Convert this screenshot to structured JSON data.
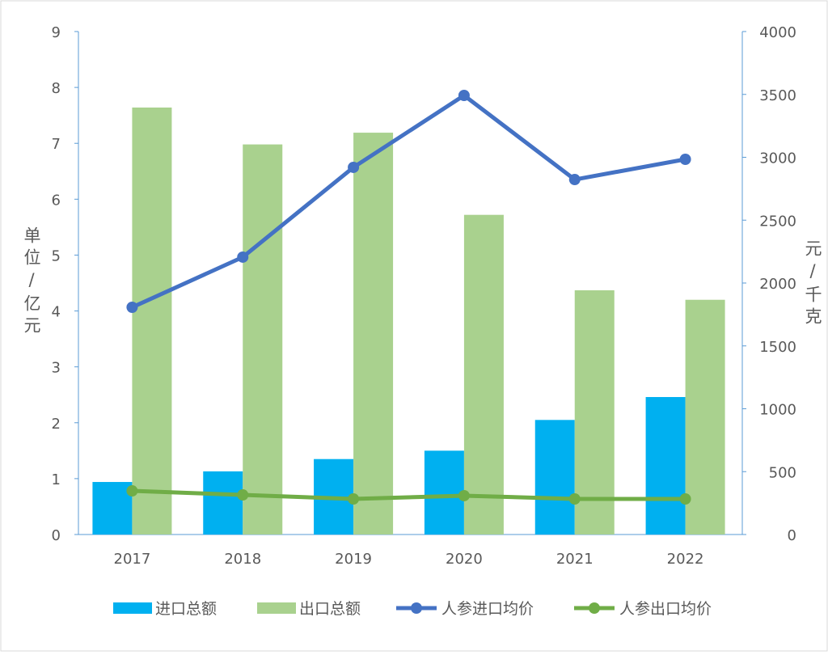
{
  "chart_data": {
    "type": "bar",
    "title": "",
    "categories": [
      "2017",
      "2018",
      "2019",
      "2020",
      "2021",
      "2022"
    ],
    "ylabel_left": "单位/亿元",
    "ylabel_right": "元/千克",
    "ylim_left": [
      0,
      9
    ],
    "yticks_left": [
      0,
      1,
      2,
      3,
      4,
      5,
      6,
      7,
      8,
      9
    ],
    "ylim_right": [
      0,
      4000
    ],
    "yticks_right": [
      0,
      500,
      1000,
      1500,
      2000,
      2500,
      3000,
      3500,
      4000
    ],
    "legend_position": "bottom",
    "series": [
      {
        "name": "进口总额",
        "type": "bar",
        "axis": "left",
        "color": "#00B0F0",
        "values": [
          0.94,
          1.13,
          1.35,
          1.5,
          2.05,
          2.46
        ]
      },
      {
        "name": "出口总额",
        "type": "bar",
        "axis": "left",
        "color": "#A9D18E",
        "values": [
          7.64,
          6.98,
          7.19,
          5.72,
          4.37,
          4.2
        ]
      },
      {
        "name": "人参进口均价",
        "type": "line",
        "axis": "right",
        "color": "#4472C4",
        "values": [
          1807,
          2206,
          2920,
          3492,
          2823,
          2984
        ]
      },
      {
        "name": "人参出口均价",
        "type": "line",
        "axis": "right",
        "color": "#70AD47",
        "values": [
          347,
          315,
          283,
          309,
          283,
          283
        ]
      }
    ]
  }
}
